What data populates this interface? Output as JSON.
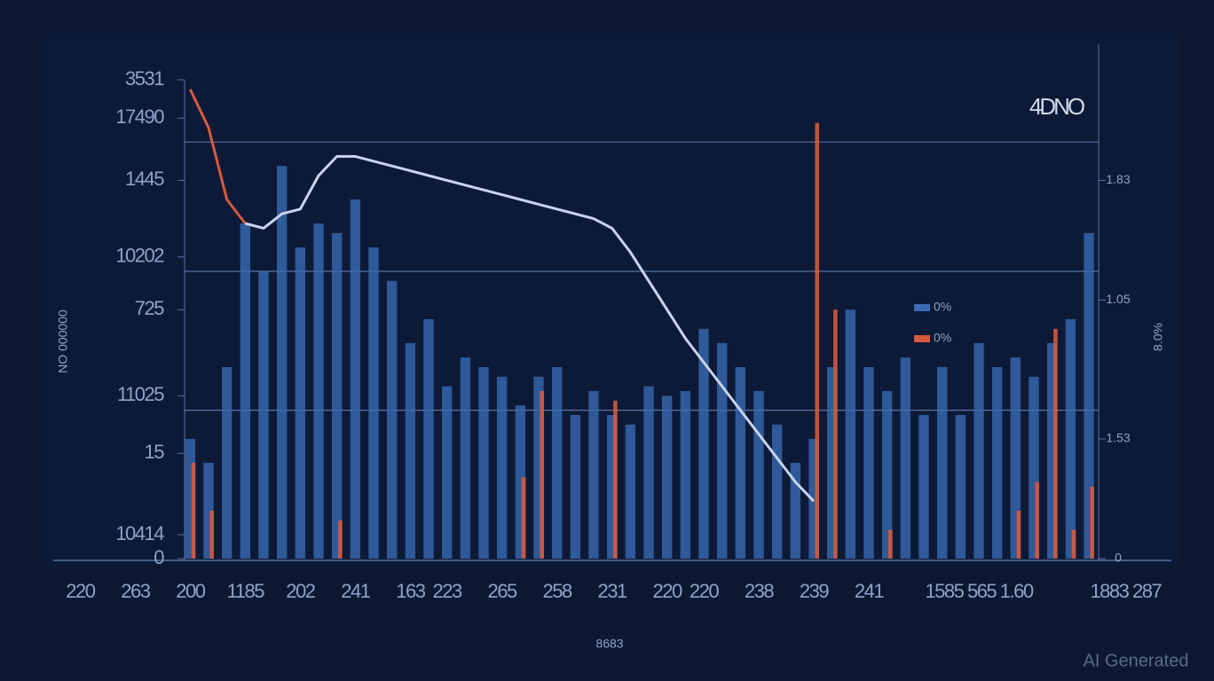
{
  "chart_data": {
    "type": "bar",
    "title": "4DNO",
    "y_label": "NO 000000",
    "y2_label": "8.0%",
    "x_label": "8683",
    "watermark": "AI Generated",
    "categories": [
      "220",
      null,
      null,
      "263",
      null,
      null,
      "200",
      null,
      null,
      "1185",
      null,
      null,
      "202",
      null,
      null,
      "241",
      null,
      null,
      "163",
      null,
      "223",
      null,
      null,
      "265",
      null,
      null,
      "258",
      null,
      null,
      "231",
      null,
      null,
      "220",
      null,
      "220",
      null,
      null,
      "238",
      null,
      null,
      "239",
      null,
      null,
      "241",
      null,
      null,
      null,
      null,
      null,
      "1585 565 1.60",
      null,
      null,
      null,
      null,
      null,
      null,
      null,
      "1883 287",
      null,
      null
    ],
    "series": [
      {
        "name": "0%",
        "color": "#3a6cb4",
        "values": [
          null,
          null,
          null,
          null,
          null,
          null,
          25,
          20,
          40,
          70,
          60,
          82,
          65,
          70,
          68,
          75,
          65,
          58,
          45,
          50,
          36,
          42,
          40,
          38,
          32,
          38,
          40,
          30,
          35,
          30,
          28,
          36,
          34,
          35,
          48,
          45,
          40,
          35,
          28,
          20,
          25,
          40,
          52,
          40,
          35,
          42,
          30,
          40,
          30,
          45,
          40,
          42,
          38,
          45,
          50,
          68,
          null,
          null,
          null,
          null
        ]
      },
      {
        "name": "0%",
        "color": "#d65a3c",
        "values": [
          null,
          null,
          null,
          null,
          null,
          null,
          20,
          10,
          null,
          null,
          null,
          null,
          null,
          null,
          8,
          null,
          null,
          null,
          null,
          null,
          null,
          null,
          null,
          null,
          17,
          35,
          null,
          null,
          null,
          33,
          null,
          null,
          null,
          null,
          null,
          null,
          null,
          null,
          null,
          null,
          91,
          52,
          null,
          null,
          6,
          null,
          null,
          null,
          null,
          null,
          null,
          10,
          16,
          48,
          6,
          15,
          null,
          null,
          null,
          null
        ]
      }
    ],
    "lines": [
      {
        "color": "#d65a3c",
        "values": [
          null,
          null,
          null,
          null,
          null,
          null,
          98,
          90,
          75,
          70,
          null,
          null,
          null,
          null,
          null,
          null,
          null,
          null,
          null,
          null,
          null,
          null,
          null,
          null,
          null,
          null,
          null,
          null,
          null,
          null,
          null,
          null,
          null,
          null,
          null,
          null,
          null,
          null,
          null,
          null,
          null,
          null,
          null,
          null,
          null,
          null,
          null,
          null,
          null,
          null,
          null,
          null,
          null,
          null,
          null,
          null,
          null,
          null,
          null,
          null
        ]
      },
      {
        "color": "#c8d4ee",
        "values": [
          null,
          null,
          null,
          null,
          null,
          null,
          null,
          null,
          null,
          70,
          69,
          72,
          73,
          80,
          84,
          84,
          83,
          82,
          81,
          80,
          79,
          78,
          77,
          76,
          75,
          74,
          73,
          72,
          71,
          69,
          64,
          58,
          52,
          46,
          41,
          36,
          31,
          26,
          21,
          16,
          12,
          null,
          null,
          null,
          null,
          null,
          null,
          null,
          null,
          null,
          null,
          null,
          null,
          null,
          null,
          null,
          null,
          null,
          null,
          null
        ]
      }
    ],
    "ylim": [
      0,
      100
    ],
    "yticks": [
      {
        "value": 100,
        "label": "3531"
      },
      {
        "value": 92,
        "label": "17490"
      },
      {
        "value": 79,
        "label": "1445"
      },
      {
        "value": 63,
        "label": "10202"
      },
      {
        "value": 52,
        "label": "725"
      },
      {
        "value": 34,
        "label": "11025"
      },
      {
        "value": 22,
        "label": "15"
      },
      {
        "value": 5,
        "label": "10414"
      },
      0
    ],
    "y2lim": [
      0,
      100
    ],
    "y2ticks": [
      {
        "value": 79,
        "label": "1.83"
      },
      {
        "value": 54,
        "label": "1.05"
      },
      {
        "value": 25,
        "label": "1.53"
      },
      0
    ],
    "grid_lines": [
      87,
      60,
      31
    ],
    "legend": "right"
  }
}
